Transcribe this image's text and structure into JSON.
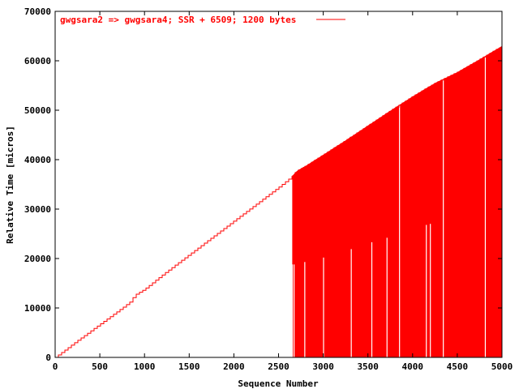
{
  "chart_data": {
    "type": "line",
    "xlabel": "Sequence Number",
    "ylabel": "Relative Time [micros]",
    "xlim": [
      0,
      5000
    ],
    "ylim": [
      0,
      70000
    ],
    "x_ticks": [
      0,
      500,
      1000,
      1500,
      2000,
      2500,
      3000,
      3500,
      4000,
      4500,
      5000
    ],
    "y_ticks": [
      0,
      10000,
      20000,
      30000,
      40000,
      50000,
      60000,
      70000
    ],
    "legend_position": "top-left",
    "grid": false,
    "series": [
      {
        "name": "gwgsara2 => gwgsara4; SSR + 6509; 1200 bytes",
        "color": "#ff0000",
        "style": "steps",
        "x": [
          0,
          250,
          500,
          750,
          850,
          880,
          900,
          1000,
          1250,
          1500,
          1750,
          2000,
          2250,
          2500,
          2650,
          2700,
          2800,
          3000,
          3250,
          3500,
          3750,
          4000,
          4250,
          4500,
          4750,
          5000
        ],
        "y": [
          0,
          3400,
          6700,
          10000,
          11400,
          12400,
          12700,
          13800,
          17400,
          20800,
          24200,
          27600,
          31000,
          34400,
          36600,
          37700,
          38700,
          41000,
          43900,
          46900,
          49900,
          52800,
          55500,
          57700,
          60300,
          63000
        ]
      }
    ],
    "fill_region": {
      "x_start": 2660,
      "x_end": 5000,
      "lower_y": 0,
      "gaps_x": [
        2660,
        2780,
        2990,
        3300,
        3530,
        3700,
        3840,
        4140,
        4185,
        4330,
        4800
      ]
    },
    "spikes": [
      {
        "x": 2660,
        "y_min": 18800
      },
      {
        "x": 2780,
        "y_min": 19300
      },
      {
        "x": 2990,
        "y_min": 20200
      },
      {
        "x": 3300,
        "y_min": 21900
      },
      {
        "x": 3530,
        "y_min": 23300
      },
      {
        "x": 3700,
        "y_min": 24200
      },
      {
        "x": 4140,
        "y_min": 26800
      },
      {
        "x": 4185,
        "y_min": 27000
      }
    ]
  }
}
